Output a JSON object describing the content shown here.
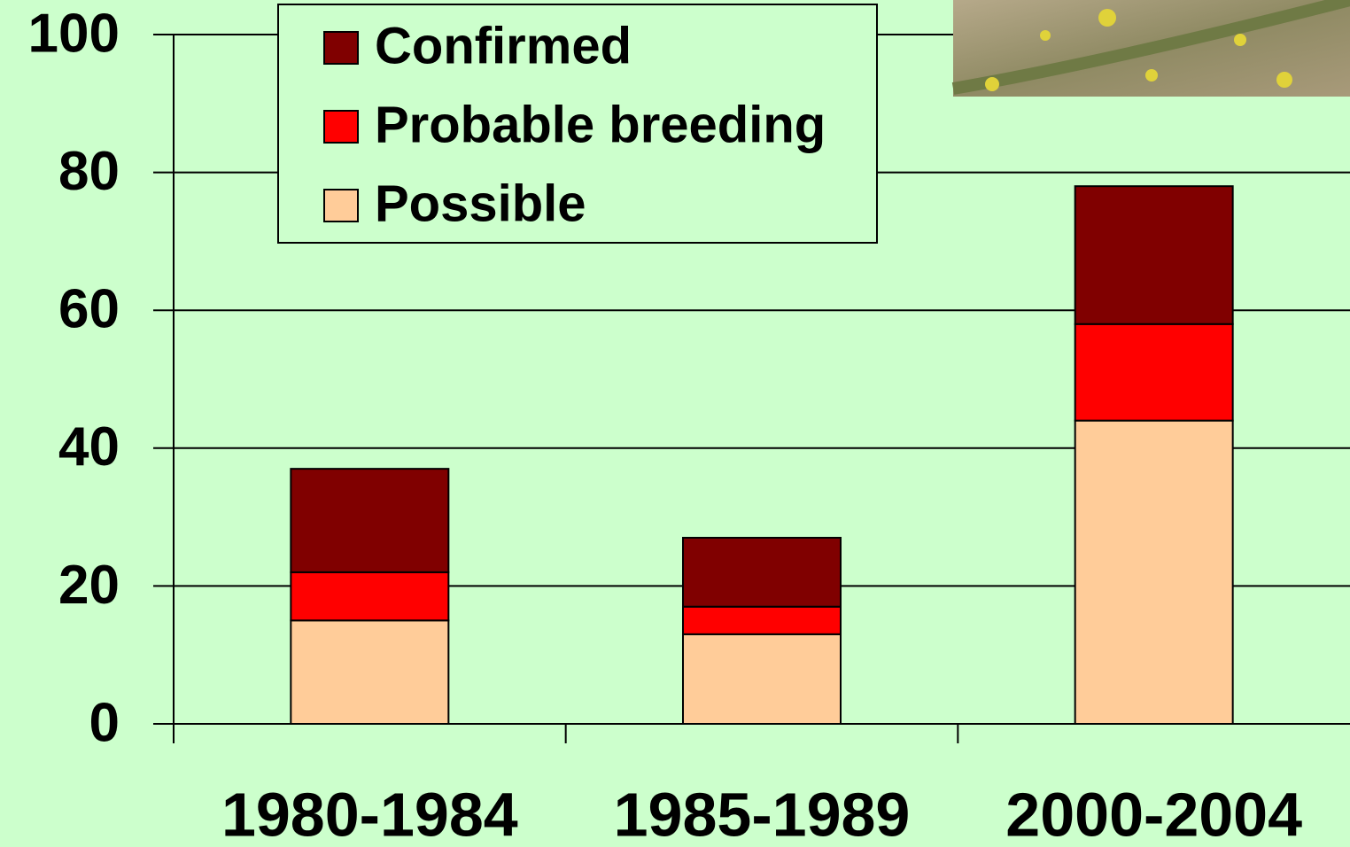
{
  "chart_data": {
    "type": "stacked_bar",
    "categories": [
      "1980-1984",
      "1985-1989",
      "2000-2004"
    ],
    "series": [
      {
        "name": "Possible",
        "color": "#ffcc99",
        "values": [
          15,
          13,
          44
        ]
      },
      {
        "name": "Probable breeding",
        "color": "#ff0000",
        "values": [
          7,
          4,
          14
        ]
      },
      {
        "name": "Confirmed",
        "color": "#800000",
        "values": [
          15,
          10,
          20
        ]
      }
    ],
    "ylim": [
      0,
      100
    ],
    "yticks": [
      0,
      20,
      40,
      60,
      80,
      100
    ],
    "grid": true,
    "legend": "top"
  }
}
